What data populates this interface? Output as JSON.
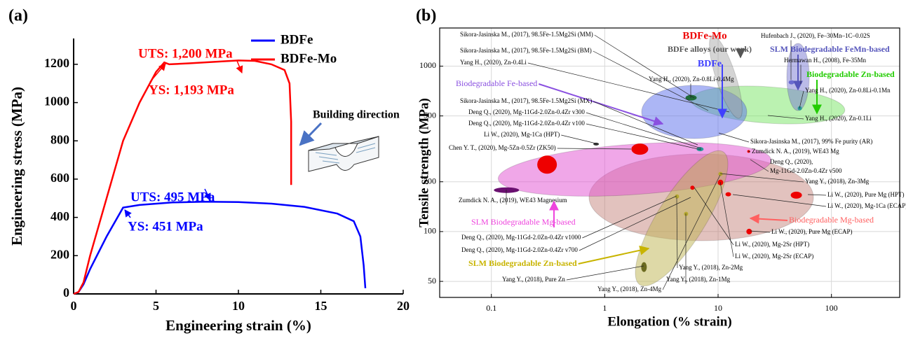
{
  "chart_data": [
    {
      "type": "line",
      "panel_label": "(a)",
      "x_label": "Engineering strain (%)",
      "y_label": "Engineering stress (MPa)",
      "xlim": [
        0,
        20
      ],
      "ylim": [
        0,
        1335
      ],
      "xticks": [
        0,
        5,
        10,
        15,
        20
      ],
      "yticks": [
        0,
        200,
        400,
        600,
        800,
        1000,
        1200
      ],
      "legend": "upper right",
      "series": [
        {
          "name": "BDFe",
          "color": "#0000ff",
          "x": [
            0,
            0.3,
            0.6,
            1,
            2,
            3,
            4,
            6,
            8,
            10,
            12,
            14,
            16,
            17,
            17.4,
            17.6,
            17.7
          ],
          "values": [
            0,
            10,
            50,
            130,
            300,
            451,
            465,
            478,
            482,
            480,
            472,
            455,
            420,
            380,
            300,
            150,
            30
          ]
        },
        {
          "name": "BDFe-Mo",
          "color": "#ff0000",
          "x": [
            0,
            0.3,
            0.6,
            1,
            2,
            3,
            4,
            5,
            5.5,
            5.8,
            7,
            9,
            10,
            11,
            12,
            12.8,
            13.1,
            13.2,
            13.2
          ],
          "values": [
            0,
            10,
            60,
            200,
            500,
            800,
            1000,
            1160,
            1210,
            1200,
            1205,
            1215,
            1220,
            1218,
            1200,
            1170,
            1100,
            900,
            570
          ]
        }
      ],
      "annotations": [
        "UTS: 1,200 MPa",
        "YS: 1,193 MPa",
        "UTS: 495 MPa",
        "YS: 451 MPa",
        "Building direction"
      ]
    },
    {
      "type": "scatter",
      "panel_label": "(b)",
      "x_label": "Elongation (% strain)",
      "y_label": "Tensile strength (MPa)",
      "log_x": true,
      "log_y": true,
      "grid": true,
      "xlim": [
        0.035,
        400
      ],
      "ylim": [
        40,
        1700
      ],
      "xticks": [
        0.1,
        1,
        10,
        100
      ],
      "yticks": [
        50,
        100,
        200,
        500,
        1000
      ],
      "points": {
        "x": [
          0.31,
          2.04,
          0.136,
          18.6,
          10.5,
          5.94,
          12.3,
          49,
          18.8,
          10.5,
          4.34,
          5.22,
          2.22,
          5.78,
          6.94,
          52.6,
          44.4,
          0.84
        ],
        "values": [
          254,
          315,
          178,
          305,
          198,
          184,
          168,
          166,
          100,
          223,
          163,
          128,
          61,
          644,
          315,
          556,
          798,
          338
        ],
        "colors": [
          "#ee0000",
          "#ee0000",
          "#6a1070",
          "#ee0000",
          "#ee0000",
          "#ee0000",
          "#ee0000",
          "#ee0000",
          "#ee0000",
          "#b5a830",
          "#b5a830",
          "#b5a830",
          "#6b6a20",
          "#1f6b3a",
          "#2a9a9a",
          "#2a9a9a",
          "#6a6ad0",
          "#333333"
        ]
      },
      "annotations": [
        "Sikora-Jasinska M., (2017), 98.5Fe-1.5Mg2Si (MM)",
        "Sikora-Jasinska M., (2017), 98.5Fe-1.5Mg2Si (BM)",
        "Yang H., (2020), Zn-0.4Li",
        "BDFe-Mo",
        "BDFe alloys (our work)",
        "BDFe",
        "Hufenbach J., (2020), Fe–30Mn–1C–0.02S",
        "SLM Biodegradable FeMn-based",
        "Hermawan H., (2008), Fe-35Mn",
        "Biodegradable Zn-based",
        "Yang H., (2020), Zn-0.8Li-0.4Mg",
        "Biodegradable Fe-based",
        "Yang H., (2020), Zn-0.8Li-0.1Mn",
        "Sikora-Jasinska M., (2017), 98.5Fe-1.5Mg2Si (MX)",
        "Deng Q., (2020), Mg-11Gd-2.0Zn-0.4Zr v300",
        "Yang H., (2020), Zn-0.1Li",
        "Deng Q., (2020), Mg-11Gd-2.0Zn-0.4Zr v100",
        "Li W., (2020), Mg-1Ca (HPT)",
        "Sikora-Jasinska M., (2017), 99% Fe purity (AR)",
        "Chen Y. T., (2020), Mg-5Zn-0.5Zr (ZK50)",
        "Zumdick N. A., (2019), WE43 Mg",
        "Deng Q., (2020),",
        "Mg-11Gd-2.0Zn-0.4Zr v500",
        "Yang Y., (2018), Zn-3Mg",
        "Zumdick N. A., (2019), WE43 Magnesium",
        "Li W., (2020), Pure Mg (HPT)",
        "Li W., (2020), Mg-1Ca (ECAP)",
        "SLM Biodegradable Mg-based",
        "Biodegradable Mg-based",
        "Li W., (2020), Pure Mg (ECAP)",
        "Deng Q., (2020), Mg-11Gd-2.0Zn-0.4Zr v1000",
        "Li W., (2020), Mg-2Sr (HPT)",
        "Deng Q., (2020), Mg-11Gd-2.0Zn-0.4Zr v700",
        "Li W., (2020), Mg-2Sr (ECAP)",
        "SLM Biodegradable Zn-based",
        "Yang Y., (2018), Zn-2Mg",
        "Yang Y., (2018), Pure Zn",
        "Yang Y., (2018), Zn-1Mg",
        "Yang Y., (2018), Zn-4Mg"
      ]
    }
  ]
}
